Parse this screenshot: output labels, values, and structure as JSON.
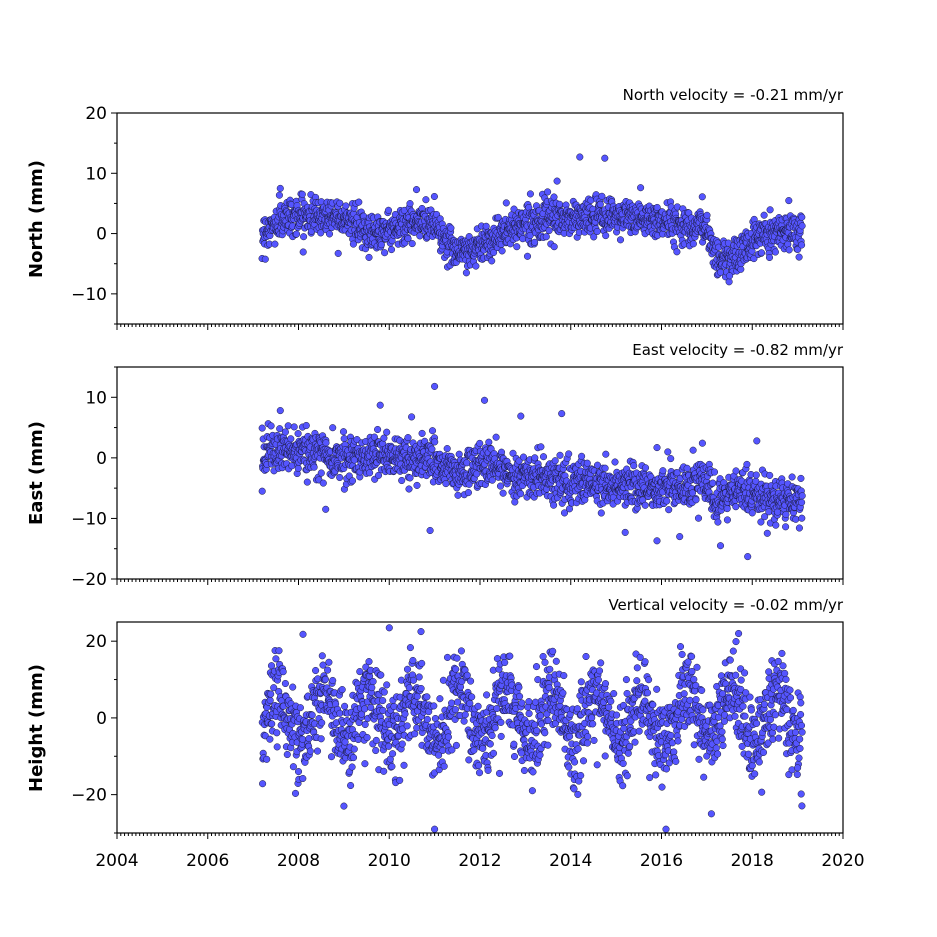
{
  "chart_data": [
    {
      "type": "scatter",
      "title": "North velocity = -0.21 mm/yr",
      "ylabel": "North (mm)",
      "ylim": [
        -15,
        20
      ],
      "yticks": [
        -10,
        0,
        10,
        20
      ],
      "yticklabels": [
        "−10",
        "0",
        "10",
        "20"
      ],
      "xlim": [
        2004,
        2020
      ],
      "xticks": [
        2004,
        2006,
        2008,
        2010,
        2012,
        2014,
        2016,
        2018,
        2020
      ],
      "xticklabels": [],
      "series": [
        {
          "color": "#5555ff",
          "x_start": 2007.2,
          "x_end": 2019.1,
          "anchors": [
            [
              2007.2,
              0
            ],
            [
              2007.8,
              3
            ],
            [
              2009.0,
              3
            ],
            [
              2009.5,
              0
            ],
            [
              2010.5,
              1.5
            ],
            [
              2011.0,
              2
            ],
            [
              2011.3,
              -2
            ],
            [
              2011.7,
              -3
            ],
            [
              2012.5,
              0
            ],
            [
              2013.0,
              2
            ],
            [
              2014.0,
              2.5
            ],
            [
              2015.0,
              3
            ],
            [
              2016.0,
              2
            ],
            [
              2017.0,
              1
            ],
            [
              2017.2,
              -4
            ],
            [
              2017.6,
              -4
            ],
            [
              2018.2,
              0
            ],
            [
              2019.1,
              1
            ]
          ],
          "noise_sd": 1.5,
          "outliers": [
            [
              2014.2,
              12.7
            ],
            [
              2014.75,
              12.5
            ],
            [
              2013.7,
              8.7
            ],
            [
              2007.6,
              7.5
            ],
            [
              2010.6,
              7.3
            ],
            [
              2016.9,
              6.1
            ],
            [
              2011.7,
              -6.5
            ],
            [
              2017.5,
              -7.0
            ]
          ]
        }
      ]
    },
    {
      "type": "scatter",
      "title": "East velocity = -0.82 mm/yr",
      "ylabel": "East (mm)",
      "ylim": [
        -20,
        15
      ],
      "yticks": [
        -20,
        -10,
        0,
        10
      ],
      "yticklabels": [
        "−20",
        "−10",
        "0",
        "10"
      ],
      "xlim": [
        2004,
        2020
      ],
      "xticks": [
        2004,
        2006,
        2008,
        2010,
        2012,
        2014,
        2016,
        2018,
        2020
      ],
      "xticklabels": [],
      "series": [
        {
          "color": "#5555ff",
          "x_start": 2007.2,
          "x_end": 2019.1,
          "anchors": [
            [
              2007.2,
              1
            ],
            [
              2008.0,
              1
            ],
            [
              2009.0,
              0
            ],
            [
              2010.0,
              0.5
            ],
            [
              2011.0,
              -0.5
            ],
            [
              2011.5,
              -3
            ],
            [
              2012.0,
              -1
            ],
            [
              2013.0,
              -3
            ],
            [
              2014.0,
              -4
            ],
            [
              2015.0,
              -4.5
            ],
            [
              2016.0,
              -5
            ],
            [
              2017.0,
              -4
            ],
            [
              2017.2,
              -8
            ],
            [
              2017.8,
              -5
            ],
            [
              2018.3,
              -7
            ],
            [
              2019.1,
              -7
            ]
          ],
          "noise_sd": 1.8,
          "outliers": [
            [
              2011.0,
              11.8
            ],
            [
              2012.1,
              9.5
            ],
            [
              2009.8,
              8.7
            ],
            [
              2007.6,
              7.8
            ],
            [
              2013.8,
              7.3
            ],
            [
              2012.9,
              6.9
            ],
            [
              2007.2,
              -5.5
            ],
            [
              2008.6,
              -8.5
            ],
            [
              2010.9,
              -12.0
            ],
            [
              2015.2,
              -12.3
            ],
            [
              2015.9,
              -13.7
            ],
            [
              2016.4,
              -13.0
            ],
            [
              2017.3,
              -14.5
            ],
            [
              2017.9,
              -16.3
            ],
            [
              2018.1,
              2.8
            ],
            [
              2015.9,
              1.7
            ]
          ]
        }
      ]
    },
    {
      "type": "scatter",
      "title": "Vertical velocity = -0.02 mm/yr",
      "ylabel": "Height (mm)",
      "ylim": [
        -30,
        25
      ],
      "yticks": [
        -20,
        0,
        20
      ],
      "yticklabels": [
        "−20",
        "0",
        "20"
      ],
      "xlim": [
        2004,
        2020
      ],
      "xticks": [
        2004,
        2006,
        2008,
        2010,
        2012,
        2014,
        2016,
        2018,
        2020
      ],
      "xticklabels": [
        "2004",
        "2006",
        "2008",
        "2010",
        "2012",
        "2014",
        "2016",
        "2018",
        "2020"
      ],
      "series": [
        {
          "color": "#5555ff",
          "x_start": 2007.2,
          "x_end": 2019.1,
          "anchors": [
            [
              2007.2,
              0
            ],
            [
              2019.1,
              0
            ]
          ],
          "seasonal_amplitude": 6,
          "noise_sd": 5.5,
          "outliers": [
            [
              2010.0,
              23.5
            ],
            [
              2010.7,
              22.5
            ],
            [
              2008.1,
              21.8
            ],
            [
              2017.7,
              22.0
            ],
            [
              2011.0,
              -29.0
            ],
            [
              2016.1,
              -29.0
            ],
            [
              2009.0,
              -23.0
            ],
            [
              2017.1,
              -25.0
            ],
            [
              2019.0,
              -13.0
            ]
          ]
        }
      ]
    }
  ]
}
